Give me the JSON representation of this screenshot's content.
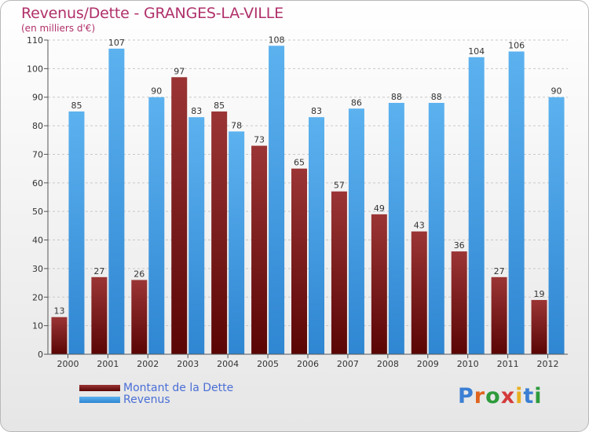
{
  "header": {
    "title": "Revenus/Dette - GRANGES-LA-VILLE",
    "subtitle": "(en milliers d'€)"
  },
  "legend": {
    "items": [
      {
        "label": "Montant de la Dette",
        "color": "#7a1010"
      },
      {
        "label": "Revenus",
        "color": "#4aa3e8"
      }
    ]
  },
  "logo": {
    "text": "Proxiti",
    "colors": [
      "#3b7fd4",
      "#e0641e",
      "#2e9b3b",
      "#d43b3b",
      "#e8b020",
      "#3b7fd4",
      "#2e9b3b"
    ]
  },
  "chart_data": {
    "type": "bar",
    "title": "Revenus/Dette - GRANGES-LA-VILLE",
    "subtitle": "(en milliers d'€)",
    "categories": [
      "2000",
      "2001",
      "2002",
      "2003",
      "2004",
      "2005",
      "2006",
      "2007",
      "2008",
      "2009",
      "2010",
      "2011",
      "2012"
    ],
    "series": [
      {
        "name": "Montant de la Dette",
        "color": "#7a1010",
        "values": [
          13,
          27,
          26,
          97,
          85,
          73,
          65,
          57,
          49,
          43,
          36,
          27,
          19
        ]
      },
      {
        "name": "Revenus",
        "color": "#4aa3e8",
        "values": [
          85,
          107,
          90,
          83,
          78,
          108,
          83,
          86,
          88,
          88,
          104,
          106,
          90
        ]
      }
    ],
    "ylim": [
      0,
      110
    ],
    "yticks": [
      0,
      10,
      20,
      30,
      40,
      50,
      60,
      70,
      80,
      90,
      100,
      110
    ],
    "grid": true,
    "legend_position": "bottom-left"
  }
}
